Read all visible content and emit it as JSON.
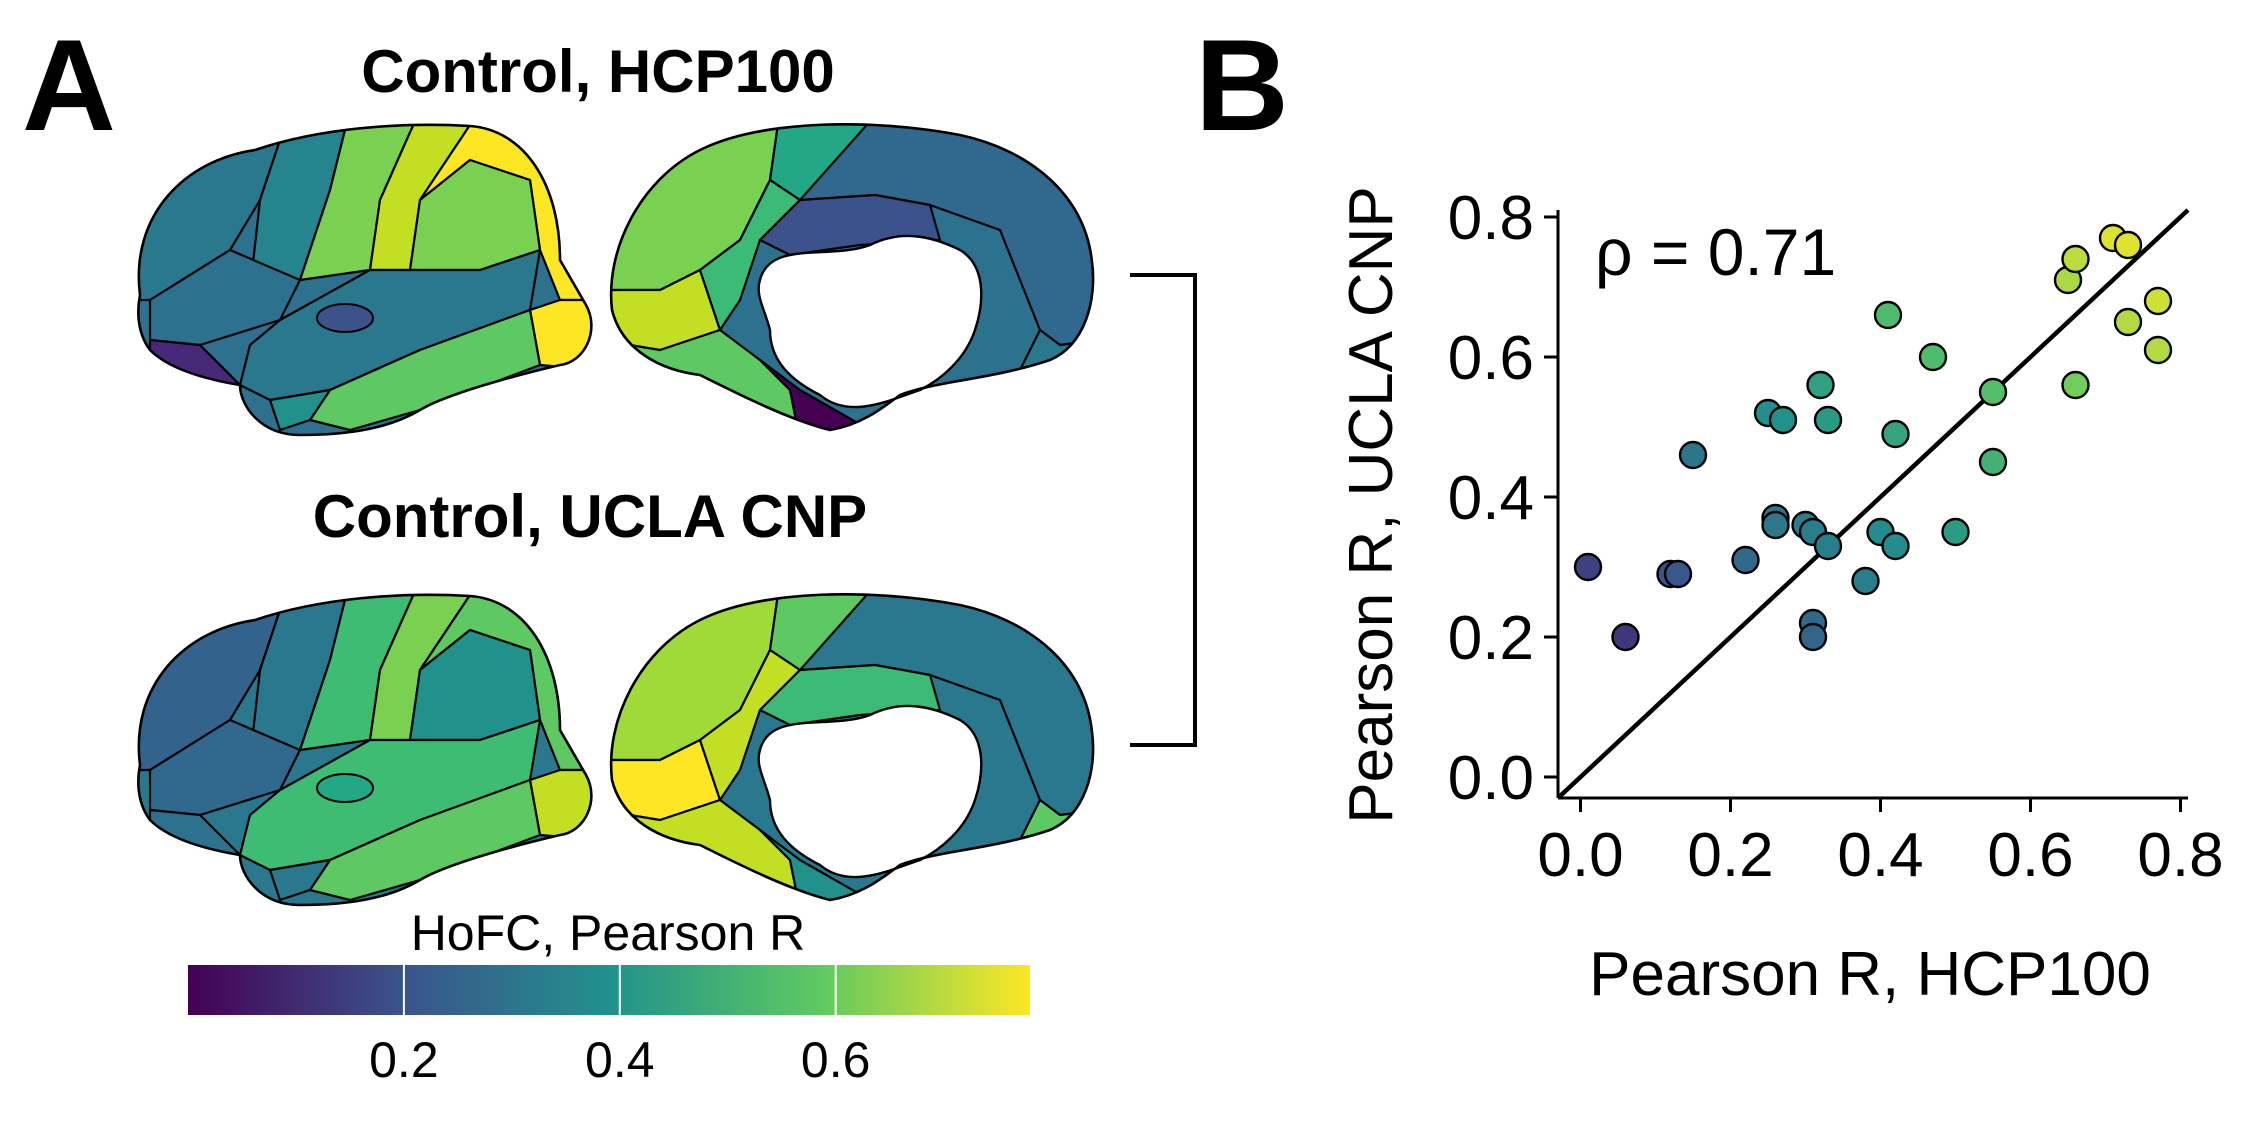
{
  "panel_a": {
    "letter": "A",
    "title_top": "Control, HCP100",
    "title_bottom": "Control, UCLA CNP",
    "colorbar": {
      "label": "HoFC, Pearson R",
      "ticks": [
        {
          "value": 0.2,
          "label": "0.2"
        },
        {
          "value": 0.4,
          "label": "0.4"
        },
        {
          "value": 0.6,
          "label": "0.6"
        }
      ],
      "range": [
        0.0,
        0.78
      ],
      "colormap": [
        "#440154",
        "#3b528b",
        "#21918c",
        "#5ec962",
        "#fde725"
      ]
    }
  },
  "panel_b": {
    "letter": "B",
    "annotation": "ρ = 0.71"
  },
  "chart_data": {
    "type": "scatter",
    "xlabel": "Pearson R, HCP100",
    "ylabel": "Pearson R, UCLA CNP",
    "xlim": [
      -0.03,
      0.81
    ],
    "ylim": [
      -0.03,
      0.81
    ],
    "xticks": [
      "0.0",
      "0.2",
      "0.4",
      "0.6",
      "0.8"
    ],
    "yticks": [
      "0.0",
      "0.2",
      "0.4",
      "0.6",
      "0.8"
    ],
    "reference_line": "identity (y = x)",
    "grid": false,
    "color_by": "mean of x and y, viridis colormap",
    "points": [
      {
        "x": 0.01,
        "y": 0.3
      },
      {
        "x": 0.06,
        "y": 0.2
      },
      {
        "x": 0.12,
        "y": 0.29
      },
      {
        "x": 0.13,
        "y": 0.29
      },
      {
        "x": 0.15,
        "y": 0.46
      },
      {
        "x": 0.22,
        "y": 0.31
      },
      {
        "x": 0.25,
        "y": 0.52
      },
      {
        "x": 0.27,
        "y": 0.51
      },
      {
        "x": 0.26,
        "y": 0.37
      },
      {
        "x": 0.26,
        "y": 0.36
      },
      {
        "x": 0.3,
        "y": 0.36
      },
      {
        "x": 0.31,
        "y": 0.35
      },
      {
        "x": 0.31,
        "y": 0.22
      },
      {
        "x": 0.31,
        "y": 0.2
      },
      {
        "x": 0.32,
        "y": 0.56
      },
      {
        "x": 0.33,
        "y": 0.51
      },
      {
        "x": 0.33,
        "y": 0.33
      },
      {
        "x": 0.38,
        "y": 0.28
      },
      {
        "x": 0.4,
        "y": 0.35
      },
      {
        "x": 0.41,
        "y": 0.66
      },
      {
        "x": 0.42,
        "y": 0.49
      },
      {
        "x": 0.42,
        "y": 0.33
      },
      {
        "x": 0.47,
        "y": 0.6
      },
      {
        "x": 0.5,
        "y": 0.35
      },
      {
        "x": 0.55,
        "y": 0.55
      },
      {
        "x": 0.55,
        "y": 0.45
      },
      {
        "x": 0.65,
        "y": 0.71
      },
      {
        "x": 0.66,
        "y": 0.74
      },
      {
        "x": 0.66,
        "y": 0.56
      },
      {
        "x": 0.71,
        "y": 0.77
      },
      {
        "x": 0.73,
        "y": 0.76
      },
      {
        "x": 0.73,
        "y": 0.65
      },
      {
        "x": 0.77,
        "y": 0.68
      },
      {
        "x": 0.77,
        "y": 0.61
      }
    ]
  }
}
